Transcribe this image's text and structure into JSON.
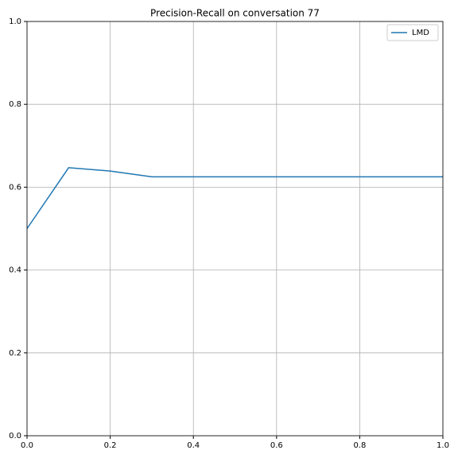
{
  "chart_data": {
    "type": "line",
    "title": "Precision-Recall on conversation 77",
    "x": [
      0,
      0.1,
      0.2,
      0.3,
      0.4,
      0.5,
      0.6,
      0.7,
      0.8,
      0.9,
      1.0
    ],
    "series": [
      {
        "name": "LMD",
        "color": "#1f77b4",
        "values": [
          0.5,
          0.647,
          0.639,
          0.625,
          0.625,
          0.625,
          0.625,
          0.625,
          0.625,
          0.625,
          0.625
        ]
      }
    ],
    "xlim": [
      0,
      1
    ],
    "ylim": [
      0,
      1
    ],
    "xticks": [
      {
        "value": 0,
        "label": "0.0"
      },
      {
        "value": 0.2,
        "label": "0.2"
      },
      {
        "value": 0.4,
        "label": "0.4"
      },
      {
        "value": 0.6,
        "label": "0.6"
      },
      {
        "value": 0.8,
        "label": "0.8"
      },
      {
        "value": 1,
        "label": "1.0"
      }
    ],
    "yticks": [
      {
        "value": 0,
        "label": "0.0"
      },
      {
        "value": 0.2,
        "label": "0.2"
      },
      {
        "value": 0.4,
        "label": "0.4"
      },
      {
        "value": 0.6,
        "label": "0.6"
      },
      {
        "value": 0.8,
        "label": "0.8"
      },
      {
        "value": 1,
        "label": "1.0"
      }
    ],
    "grid": true,
    "legend": "upper right"
  }
}
